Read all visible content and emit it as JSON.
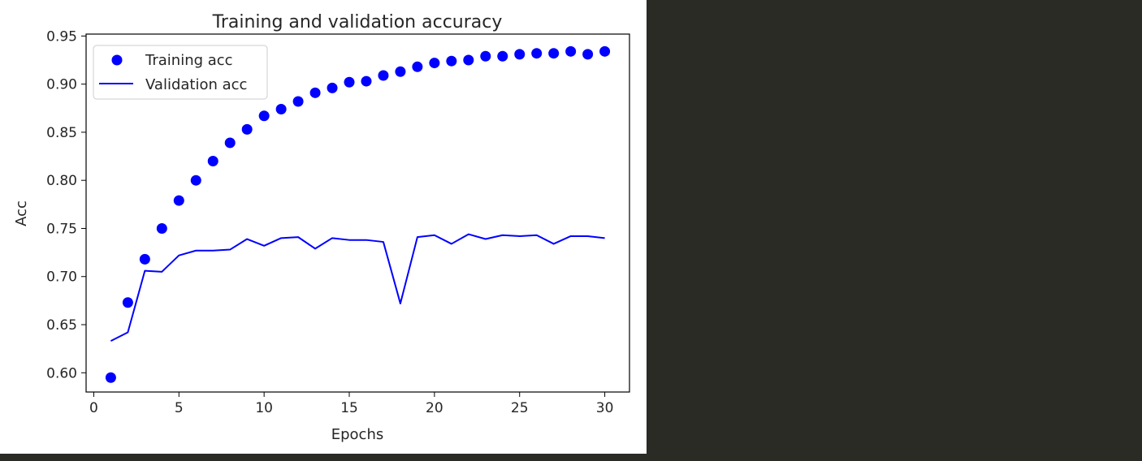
{
  "chart_data": {
    "type": "line",
    "title": "Training and validation accuracy",
    "xlabel": "Epochs",
    "ylabel": "Acc",
    "xlim": [
      -0.45,
      31.45
    ],
    "ylim": [
      0.58,
      0.952
    ],
    "x_ticks": [
      0,
      5,
      10,
      15,
      20,
      25,
      30
    ],
    "x_tick_labels": [
      "0",
      "5",
      "10",
      "15",
      "20",
      "25",
      "30"
    ],
    "y_ticks": [
      0.6,
      0.65,
      0.7,
      0.75,
      0.8,
      0.85,
      0.9,
      0.95
    ],
    "y_tick_labels": [
      "0.60",
      "0.65",
      "0.70",
      "0.75",
      "0.80",
      "0.85",
      "0.90",
      "0.95"
    ],
    "grid": false,
    "legend_position": "top-left",
    "x": [
      1,
      2,
      3,
      4,
      5,
      6,
      7,
      8,
      9,
      10,
      11,
      12,
      13,
      14,
      15,
      16,
      17,
      18,
      19,
      20,
      21,
      22,
      23,
      24,
      25,
      26,
      27,
      28,
      29,
      30
    ],
    "series": [
      {
        "name": "Training acc",
        "style": "dots",
        "color": "#0000ff",
        "values": [
          0.595,
          0.673,
          0.718,
          0.75,
          0.779,
          0.8,
          0.82,
          0.839,
          0.853,
          0.867,
          0.874,
          0.882,
          0.891,
          0.896,
          0.902,
          0.903,
          0.909,
          0.913,
          0.918,
          0.922,
          0.924,
          0.925,
          0.929,
          0.929,
          0.931,
          0.932,
          0.932,
          0.934,
          0.931,
          0.934
        ]
      },
      {
        "name": "Validation acc",
        "style": "line",
        "color": "#0000ff",
        "values": [
          0.633,
          0.642,
          0.706,
          0.705,
          0.722,
          0.727,
          0.727,
          0.728,
          0.739,
          0.732,
          0.74,
          0.741,
          0.729,
          0.74,
          0.738,
          0.738,
          0.736,
          0.672,
          0.741,
          0.743,
          0.734,
          0.744,
          0.739,
          0.743,
          0.742,
          0.743,
          0.734,
          0.742,
          0.742,
          0.74
        ]
      }
    ]
  }
}
